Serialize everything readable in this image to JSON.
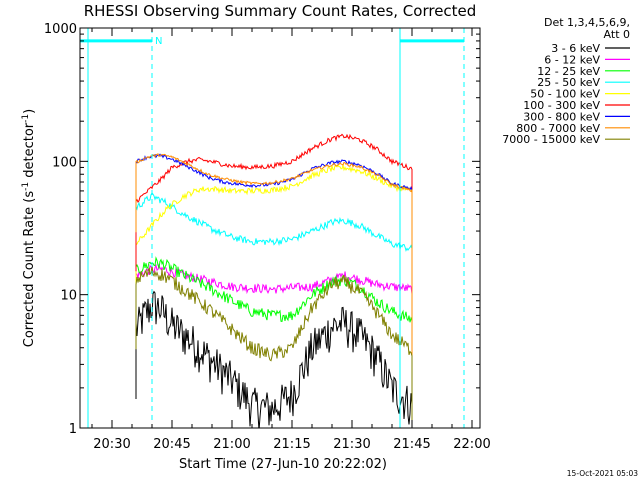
{
  "chart_data": {
    "type": "line",
    "title": "RHESSI Observing Summary Count Rates, Corrected",
    "xlabel": "Start Time (27-Jun-10 20:22:02)",
    "ylabel_html": "Corrected Count Rate (s⁻¹ detector⁻¹)",
    "ylabel_parts": [
      "Corrected Count Rate (s",
      "-1",
      " detector",
      "-1",
      ")"
    ],
    "y_scale": "log",
    "ylim": [
      1,
      1000
    ],
    "xlim_minutes": [
      20.4,
      22.0
    ],
    "x_tick_labels": [
      "20:30",
      "20:45",
      "21:00",
      "21:15",
      "21:30",
      "21:45",
      "22:00"
    ],
    "x_tick_values": [
      "20:30",
      "20:45",
      "21:00",
      "21:15",
      "21:30",
      "21:45",
      "22:00"
    ],
    "y_tick_labels": [
      "1",
      "10",
      "100",
      "1000"
    ],
    "y_tick_values": [
      1,
      10,
      100,
      1000
    ],
    "legend_header": [
      "Det 1,3,4,5,6,9,",
      "Att 0"
    ],
    "legend_placement": "right, outside plot",
    "timestamp": "15-Oct-2021 05:03",
    "annotations": [
      {
        "text": "N",
        "at": "20:40"
      }
    ],
    "night_intervals": [
      {
        "start": "20:22",
        "end": "20:40",
        "level": 800
      },
      {
        "start": "21:42",
        "end": "21:58",
        "level": 800
      }
    ],
    "vertical_markers": [
      {
        "time": "20:24",
        "style": "solid"
      },
      {
        "time": "20:40",
        "style": "dashed"
      },
      {
        "time": "21:42",
        "style": "solid"
      },
      {
        "time": "21:58",
        "style": "dashed"
      }
    ],
    "data_start": "20:36",
    "data_end": "21:45",
    "series": [
      {
        "name": "3 - 6 keV",
        "color": "#000000",
        "noise": 0.35,
        "points": [
          [
            "20:36",
            5.5
          ],
          [
            "20:38",
            7
          ],
          [
            "20:40",
            8.5
          ],
          [
            "20:42",
            8
          ],
          [
            "20:45",
            6
          ],
          [
            "20:50",
            4.5
          ],
          [
            "20:55",
            3.2
          ],
          [
            "21:00",
            2.3
          ],
          [
            "21:05",
            1.5
          ],
          [
            "21:10",
            1.4
          ],
          [
            "21:15",
            1.8
          ],
          [
            "21:20",
            4
          ],
          [
            "21:25",
            5.8
          ],
          [
            "21:28",
            6.2
          ],
          [
            "21:32",
            5
          ],
          [
            "21:36",
            3.5
          ],
          [
            "21:40",
            2
          ],
          [
            "21:45",
            1.5
          ]
        ]
      },
      {
        "name": "6 - 12 keV",
        "color": "#ff00ff",
        "noise": 0.08,
        "points": [
          [
            "20:36",
            14
          ],
          [
            "20:40",
            15.5
          ],
          [
            "20:43",
            15.5
          ],
          [
            "20:48",
            14
          ],
          [
            "20:55",
            12.5
          ],
          [
            "21:00",
            11.5
          ],
          [
            "21:10",
            11
          ],
          [
            "21:20",
            11.5
          ],
          [
            "21:25",
            13
          ],
          [
            "21:28",
            14
          ],
          [
            "21:32",
            13
          ],
          [
            "21:36",
            12
          ],
          [
            "21:40",
            11.5
          ],
          [
            "21:45",
            11
          ]
        ]
      },
      {
        "name": "12 - 25 keV",
        "color": "#00ff00",
        "noise": 0.1,
        "points": [
          [
            "20:36",
            15
          ],
          [
            "20:40",
            17.5
          ],
          [
            "20:43",
            17
          ],
          [
            "20:48",
            14
          ],
          [
            "20:55",
            11
          ],
          [
            "21:00",
            9
          ],
          [
            "21:05",
            7.5
          ],
          [
            "21:10",
            7
          ],
          [
            "21:15",
            7
          ],
          [
            "21:20",
            10
          ],
          [
            "21:25",
            12.5
          ],
          [
            "21:28",
            13
          ],
          [
            "21:32",
            11.5
          ],
          [
            "21:36",
            9
          ],
          [
            "21:40",
            7.5
          ],
          [
            "21:45",
            6.5
          ]
        ]
      },
      {
        "name": "25 - 50 keV",
        "color": "#00ffff",
        "noise": 0.06,
        "points": [
          [
            "20:36",
            45
          ],
          [
            "20:40",
            55
          ],
          [
            "20:43",
            50
          ],
          [
            "20:48",
            40
          ],
          [
            "20:55",
            31
          ],
          [
            "21:00",
            27
          ],
          [
            "21:05",
            25
          ],
          [
            "21:10",
            25
          ],
          [
            "21:15",
            26
          ],
          [
            "21:20",
            30
          ],
          [
            "21:25",
            35
          ],
          [
            "21:28",
            36
          ],
          [
            "21:32",
            33
          ],
          [
            "21:36",
            28
          ],
          [
            "21:40",
            24
          ],
          [
            "21:45",
            22
          ]
        ]
      },
      {
        "name": "50 - 100 keV",
        "color": "#ffff00",
        "noise": 0.05,
        "points": [
          [
            "20:36",
            24
          ],
          [
            "20:38",
            28
          ],
          [
            "20:41",
            36
          ],
          [
            "20:44",
            45
          ],
          [
            "20:48",
            55
          ],
          [
            "20:52",
            62
          ],
          [
            "20:56",
            62
          ],
          [
            "21:00",
            60
          ],
          [
            "21:05",
            60
          ],
          [
            "21:10",
            61
          ],
          [
            "21:15",
            65
          ],
          [
            "21:20",
            78
          ],
          [
            "21:25",
            88
          ],
          [
            "21:28",
            90
          ],
          [
            "21:32",
            85
          ],
          [
            "21:36",
            75
          ],
          [
            "21:40",
            65
          ],
          [
            "21:45",
            60
          ]
        ]
      },
      {
        "name": "100 - 300 keV",
        "color": "#ff0000",
        "noise": 0.04,
        "points": [
          [
            "20:36",
            50
          ],
          [
            "20:39",
            60
          ],
          [
            "20:42",
            72
          ],
          [
            "20:45",
            90
          ],
          [
            "20:49",
            100
          ],
          [
            "20:52",
            103
          ],
          [
            "20:56",
            98
          ],
          [
            "21:00",
            92
          ],
          [
            "21:05",
            90
          ],
          [
            "21:10",
            92
          ],
          [
            "21:15",
            100
          ],
          [
            "21:20",
            125
          ],
          [
            "21:25",
            148
          ],
          [
            "21:28",
            155
          ],
          [
            "21:32",
            145
          ],
          [
            "21:36",
            125
          ],
          [
            "21:40",
            100
          ],
          [
            "21:45",
            88
          ]
        ]
      },
      {
        "name": "300 - 800 keV",
        "color": "#0000ff",
        "noise": 0.03,
        "points": [
          [
            "20:36",
            100
          ],
          [
            "20:39",
            108
          ],
          [
            "20:42",
            110
          ],
          [
            "20:45",
            104
          ],
          [
            "20:50",
            88
          ],
          [
            "20:54",
            76
          ],
          [
            "20:58",
            70
          ],
          [
            "21:02",
            67
          ],
          [
            "21:06",
            66
          ],
          [
            "21:10",
            67
          ],
          [
            "21:15",
            73
          ],
          [
            "21:20",
            88
          ],
          [
            "21:25",
            98
          ],
          [
            "21:28",
            100
          ],
          [
            "21:32",
            94
          ],
          [
            "21:36",
            82
          ],
          [
            "21:40",
            68
          ],
          [
            "21:45",
            62
          ]
        ]
      },
      {
        "name": "800 - 7000 keV",
        "color": "#ff8c00",
        "noise": 0.025,
        "points": [
          [
            "20:36",
            98
          ],
          [
            "20:39",
            108
          ],
          [
            "20:42",
            112
          ],
          [
            "20:45",
            108
          ],
          [
            "20:50",
            92
          ],
          [
            "20:54",
            80
          ],
          [
            "20:58",
            74
          ],
          [
            "21:02",
            70
          ],
          [
            "21:06",
            68
          ],
          [
            "21:10",
            69
          ],
          [
            "21:15",
            74
          ],
          [
            "21:20",
            86
          ],
          [
            "21:25",
            94
          ],
          [
            "21:28",
            96
          ],
          [
            "21:32",
            91
          ],
          [
            "21:36",
            80
          ],
          [
            "21:40",
            67
          ],
          [
            "21:45",
            60
          ]
        ]
      },
      {
        "name": "7000 - 15000 keV",
        "color": "#808000",
        "noise": 0.12,
        "points": [
          [
            "20:36",
            13
          ],
          [
            "20:40",
            15
          ],
          [
            "20:43",
            14
          ],
          [
            "20:48",
            11
          ],
          [
            "20:55",
            7.5
          ],
          [
            "21:00",
            5.5
          ],
          [
            "21:05",
            4
          ],
          [
            "21:10",
            3.5
          ],
          [
            "21:15",
            4
          ],
          [
            "21:20",
            8
          ],
          [
            "21:25",
            12
          ],
          [
            "21:28",
            12.5
          ],
          [
            "21:32",
            10.5
          ],
          [
            "21:36",
            7.5
          ],
          [
            "21:40",
            5
          ],
          [
            "21:45",
            3.8
          ]
        ]
      }
    ]
  }
}
